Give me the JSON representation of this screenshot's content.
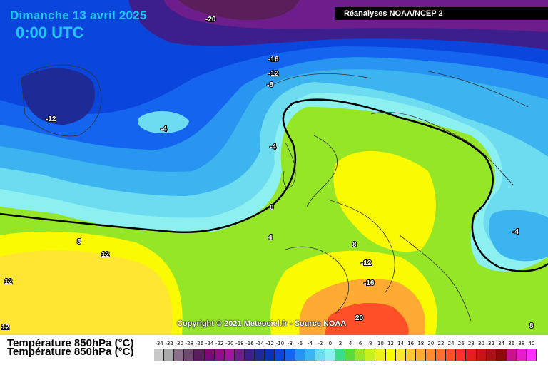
{
  "header": {
    "date": "Dimanche 13 avril 2025",
    "time": "0:00 UTC",
    "source": "Réanalyses NOAA/NCEP 2"
  },
  "copyright": "Copyright © 2021 Meteociel.fr - Source NOAA",
  "legend": {
    "title": "Température 850hPa (°C)",
    "ticks": [
      "-34",
      "-32",
      "-30",
      "-28",
      "-26",
      "-24",
      "-22",
      "-20",
      "-18",
      "-16",
      "-14",
      "-12",
      "-10",
      "-8",
      "-6",
      "-4",
      "-2",
      "0",
      "2",
      "4",
      "6",
      "8",
      "10",
      "12",
      "14",
      "16",
      "18",
      "20",
      "22",
      "24",
      "26",
      "28",
      "30",
      "32",
      "34",
      "36",
      "38",
      "40"
    ],
    "colors": [
      "#c8c8c8",
      "#aaaaaa",
      "#8a6f8a",
      "#6e4a6e",
      "#5a1e5a",
      "#7a0a7a",
      "#8e0e8e",
      "#a214a2",
      "#6e1e8c",
      "#3c1e8c",
      "#1e2a96",
      "#0a32b4",
      "#0a46dc",
      "#1464f0",
      "#2896f0",
      "#3cb4f0",
      "#6edcf0",
      "#8cf0f0",
      "#3cdc8c",
      "#5adc3c",
      "#96e628",
      "#c8f01e",
      "#eef01e",
      "#fafa00",
      "#ffe632",
      "#ffc832",
      "#ffaa32",
      "#ff8c32",
      "#ff6e32",
      "#ff5028",
      "#ff3228",
      "#e61e1e",
      "#c81414",
      "#aa1414",
      "#8c0a0a",
      "#c8148c",
      "#e61ec8",
      "#ff32ff"
    ]
  },
  "contour_labels": [
    "-20",
    "-16",
    "-12",
    "-8",
    "-12",
    "-4",
    "-4",
    "0",
    "4",
    "8",
    "12",
    "12",
    "12",
    "8",
    "-12",
    "-16",
    "20",
    "-4",
    "8"
  ]
}
